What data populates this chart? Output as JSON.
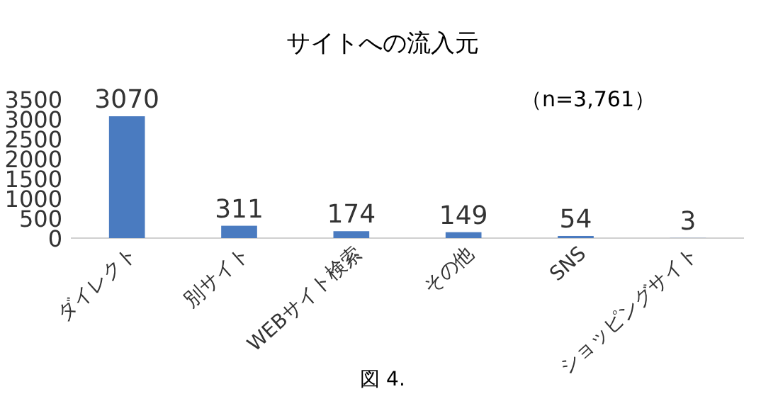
{
  "chart_data": {
    "type": "bar",
    "title": "サイトへの流入元",
    "categories": [
      "ダイレクト",
      "別サイト",
      "WEBサイト検索",
      "その他",
      "SNS",
      "ショッピングサイト"
    ],
    "values": [
      3070,
      311,
      174,
      149,
      54,
      3
    ],
    "color": "#4a7bc0",
    "ylim": [
      0,
      3500
    ],
    "yticks": [
      0,
      500,
      1000,
      1500,
      2000,
      2500,
      3000,
      3500
    ],
    "data_labels": true,
    "annotations": [
      "（n=3,761）",
      "図 4."
    ]
  }
}
